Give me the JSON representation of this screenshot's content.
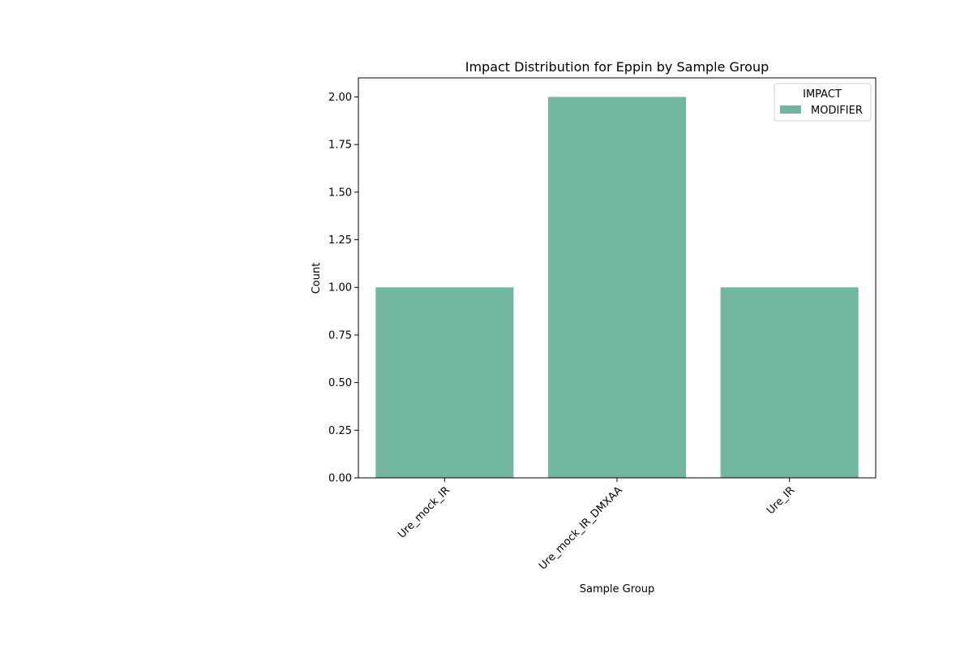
{
  "chart_data": {
    "type": "bar",
    "title": "Impact Distribution for Eppin by Sample Group",
    "xlabel": "Sample Group",
    "ylabel": "Count",
    "categories": [
      "Ure_mock_IR",
      "Ure_mock_IR_DMXAA",
      "Ure_IR"
    ],
    "series": [
      {
        "name": "MODIFIER",
        "values": [
          1,
          2,
          1
        ],
        "color": "#72b6a1"
      }
    ],
    "ylim": [
      0,
      2.1
    ],
    "yticks": [
      "0.00",
      "0.25",
      "0.50",
      "0.75",
      "1.00",
      "1.25",
      "1.50",
      "1.75",
      "2.00"
    ],
    "grid": false,
    "legend": {
      "title": "IMPACT",
      "position": "top-right"
    }
  }
}
